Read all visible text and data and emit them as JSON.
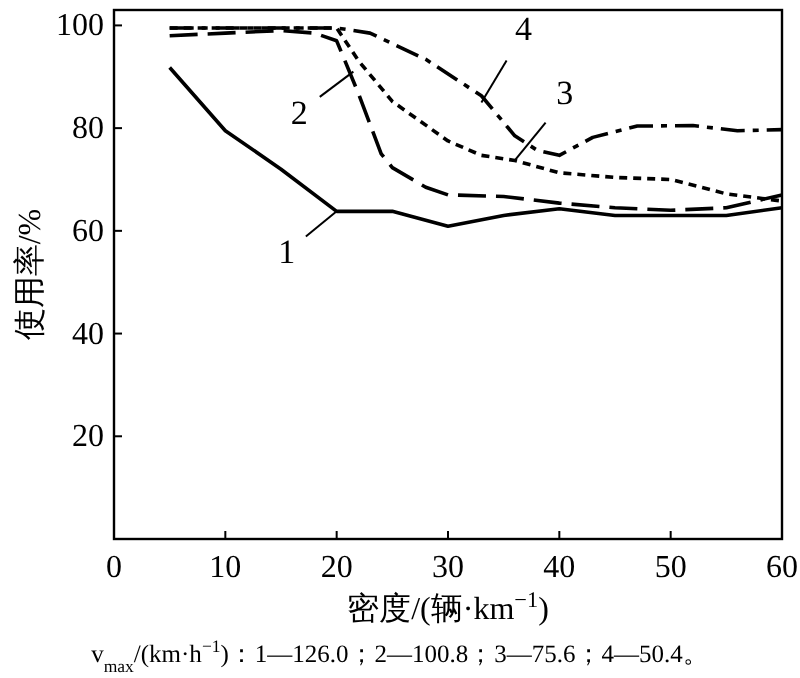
{
  "chart_data": {
    "type": "line",
    "xlabel": "密度/(辆·km$^{−1}$)",
    "ylabel": "使用率/%",
    "xlim": [
      0,
      60
    ],
    "ylim": [
      0,
      103
    ],
    "xticks": [
      0,
      10,
      20,
      30,
      40,
      50,
      60
    ],
    "yticks": [
      20,
      40,
      60,
      80,
      100
    ],
    "series": [
      {
        "color": "#000000",
        "line_style": "solid",
        "x": [
          5,
          10,
          15,
          20,
          25,
          30,
          35,
          40,
          45,
          50,
          55,
          60
        ],
        "values": [
          91.8,
          79.5,
          72,
          63.8,
          63.8,
          60.9,
          63,
          64.3,
          63,
          63,
          63,
          64.5
        ]
      },
      {
        "color": "#000000",
        "line_style": "dashed",
        "x": [
          5,
          10,
          15,
          18,
          20,
          22,
          24,
          25,
          28,
          30,
          35,
          40,
          45,
          50,
          55,
          60
        ],
        "values": [
          98,
          98.5,
          99,
          98.5,
          97,
          86.5,
          75,
          72.3,
          68.5,
          67,
          66.7,
          65.4,
          64.5,
          64,
          64.5,
          67
        ]
      },
      {
        "color": "#000000",
        "line_style": "dotted",
        "x": [
          5,
          10,
          15,
          20,
          22,
          25,
          30,
          33,
          36,
          40,
          45,
          50,
          55,
          60
        ],
        "values": [
          99.5,
          99.5,
          99.5,
          99.5,
          93,
          85.2,
          77.5,
          74.7,
          73.7,
          71.3,
          70.4,
          70,
          67.2,
          65.8
        ]
      },
      {
        "color": "#000000",
        "line_style": "dashdot",
        "x": [
          5,
          10,
          15,
          20,
          23,
          28,
          33,
          36,
          38,
          40,
          43,
          47,
          52,
          56,
          60
        ],
        "values": [
          99.5,
          99.5,
          99.5,
          99.5,
          98.5,
          93.4,
          86.3,
          78.5,
          75.7,
          74.7,
          78.2,
          80.4,
          80.5,
          79.5,
          79.7
        ]
      }
    ],
    "annotations": [
      {
        "text": "1",
        "x": 20,
        "y": 63.8
      },
      {
        "text": "2",
        "x": 21.5,
        "y": 91
      },
      {
        "text": "3",
        "x": 36,
        "y": 73.7
      },
      {
        "text": "4",
        "x": 33,
        "y": 85
      },
      "v$_{max}$/(km·h$^{−1}$)：1—126.0；2—100.8；3—75.6；4—50.4。"
    ]
  }
}
